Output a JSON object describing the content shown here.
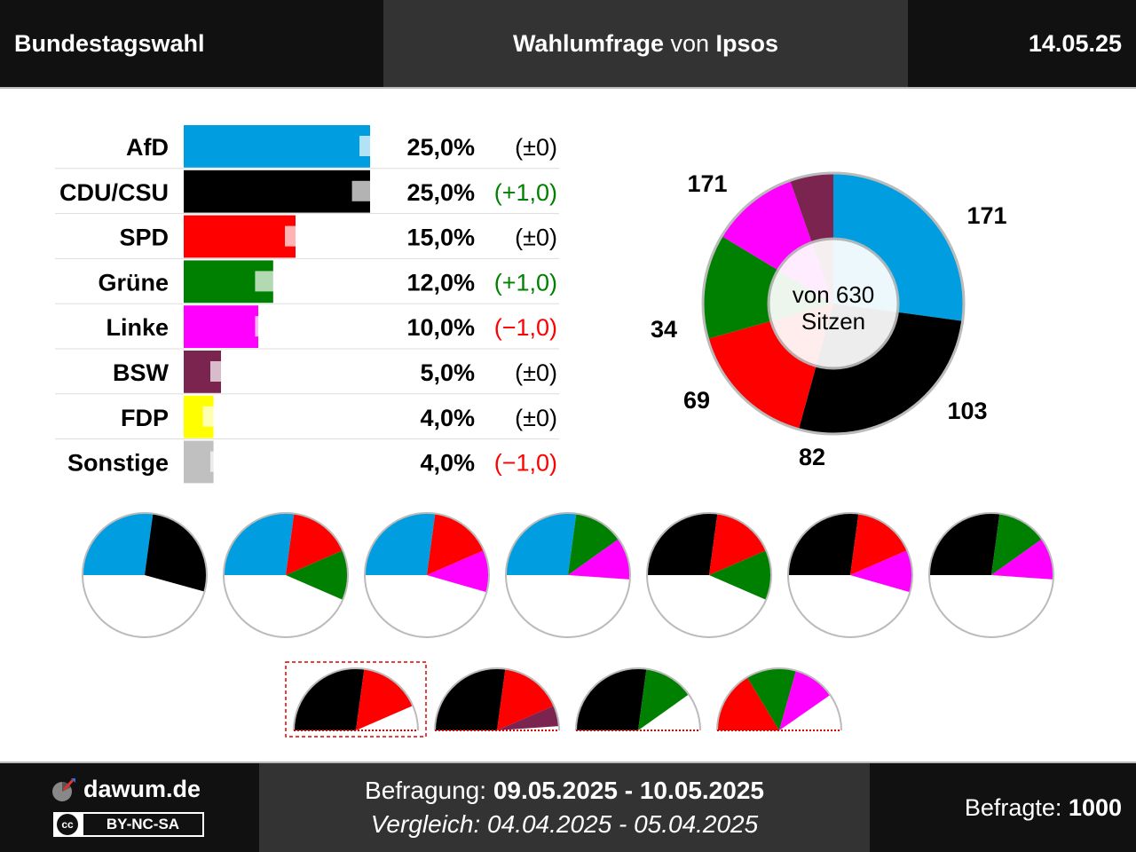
{
  "header": {
    "left": "Bundestagswahl",
    "mid_bold1": "Wahlumfrage",
    "mid_normal": " von ",
    "mid_bold2": "Ipsos",
    "date": "14.05.25"
  },
  "footer": {
    "logo": "dawum.de",
    "license": "BY-NC-SA",
    "befragung_label": "Befragung: ",
    "befragung_value": "09.05.2025 - 10.05.2025",
    "vergleich": "Vergleich: 04.04.2025 - 05.04.2025",
    "befragte_label": "Befragte: ",
    "befragte_value": "1000"
  },
  "chart_data": [
    {
      "type": "bar",
      "categories": [
        "AfD",
        "CDU/CSU",
        "SPD",
        "Grüne",
        "Linke",
        "BSW",
        "FDP",
        "Sonstige"
      ],
      "values": [
        25.0,
        25.0,
        15.0,
        12.0,
        10.0,
        5.0,
        4.0,
        4.0
      ],
      "previous": [
        25.0,
        24.0,
        15.0,
        11.0,
        11.0,
        5.0,
        4.0,
        5.0
      ],
      "value_labels": [
        "25,0%",
        "25,0%",
        "15,0%",
        "12,0%",
        "10,0%",
        "5,0%",
        "4,0%",
        "4,0%"
      ],
      "change_labels": [
        "(±0)",
        "(+1,0)",
        "(±0)",
        "(+1,0)",
        "(−1,0)",
        "(±0)",
        "(±0)",
        "(−1,0)"
      ],
      "change_colors": [
        "#000000",
        "#008000",
        "#000000",
        "#008000",
        "#ff0000",
        "#000000",
        "#000000",
        "#ff0000"
      ],
      "colors": [
        "#009ee0",
        "#000000",
        "#ff0000",
        "#008000",
        "#ff00ff",
        "#7b2450",
        "#ffff00",
        "#c0c0c0"
      ]
    },
    {
      "type": "pie",
      "title": "von 630 Sitzen",
      "categories": [
        "AfD",
        "CDU/CSU",
        "SPD",
        "Grüne",
        "Linke",
        "BSW"
      ],
      "values": [
        171,
        171,
        103,
        82,
        69,
        34
      ],
      "colors": [
        "#009ee0",
        "#000000",
        "#ff0000",
        "#008000",
        "#ff00ff",
        "#7b2450"
      ]
    }
  ],
  "coalitions_row1": [
    {
      "parties": [
        {
          "seats": 171,
          "color": "#009ee0"
        },
        {
          "seats": 171,
          "color": "#000000"
        }
      ]
    },
    {
      "parties": [
        {
          "seats": 171,
          "color": "#009ee0"
        },
        {
          "seats": 103,
          "color": "#ff0000"
        },
        {
          "seats": 82,
          "color": "#008000"
        }
      ]
    },
    {
      "parties": [
        {
          "seats": 171,
          "color": "#009ee0"
        },
        {
          "seats": 103,
          "color": "#ff0000"
        },
        {
          "seats": 69,
          "color": "#ff00ff"
        }
      ]
    },
    {
      "parties": [
        {
          "seats": 171,
          "color": "#009ee0"
        },
        {
          "seats": 82,
          "color": "#008000"
        },
        {
          "seats": 69,
          "color": "#ff00ff"
        }
      ]
    },
    {
      "parties": [
        {
          "seats": 171,
          "color": "#000000"
        },
        {
          "seats": 103,
          "color": "#ff0000"
        },
        {
          "seats": 82,
          "color": "#008000"
        }
      ]
    },
    {
      "parties": [
        {
          "seats": 171,
          "color": "#000000"
        },
        {
          "seats": 103,
          "color": "#ff0000"
        },
        {
          "seats": 69,
          "color": "#ff00ff"
        }
      ]
    },
    {
      "parties": [
        {
          "seats": 171,
          "color": "#000000"
        },
        {
          "seats": 82,
          "color": "#008000"
        },
        {
          "seats": 69,
          "color": "#ff00ff"
        }
      ]
    }
  ],
  "coalitions_row2": [
    {
      "highlighted": true,
      "parties": [
        {
          "seats": 171,
          "color": "#000000"
        },
        {
          "seats": 103,
          "color": "#ff0000"
        }
      ]
    },
    {
      "highlighted": false,
      "parties": [
        {
          "seats": 171,
          "color": "#000000"
        },
        {
          "seats": 103,
          "color": "#ff0000"
        },
        {
          "seats": 34,
          "color": "#7b2450"
        }
      ]
    },
    {
      "highlighted": false,
      "parties": [
        {
          "seats": 171,
          "color": "#000000"
        },
        {
          "seats": 82,
          "color": "#008000"
        }
      ]
    },
    {
      "highlighted": false,
      "parties": [
        {
          "seats": 103,
          "color": "#ff0000"
        },
        {
          "seats": 82,
          "color": "#008000"
        },
        {
          "seats": 69,
          "color": "#ff00ff"
        }
      ]
    }
  ],
  "total_seats": 630
}
